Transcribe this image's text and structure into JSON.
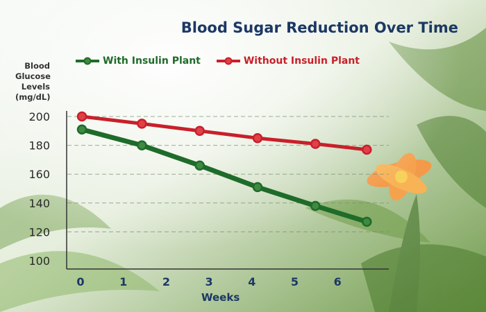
{
  "chart_data": {
    "type": "line",
    "title": "Blood Sugar Reduction Over Time",
    "xlabel": "Weeks",
    "ylabel": "Blood Glucose Levels (mg/dL)",
    "x_ticks": [
      "0",
      "1",
      "2",
      "3",
      "4",
      "5",
      "6"
    ],
    "y_ticks": [
      "100",
      "120",
      "140",
      "160",
      "180",
      "200"
    ],
    "xlim": [
      0,
      6.7
    ],
    "ylim": [
      100,
      200
    ],
    "grid": "horizontal dashed",
    "legend_position": "top",
    "series": [
      {
        "name": "With Insulin Plant",
        "color": "#1f6b2a",
        "x": [
          0,
          1.4,
          2.75,
          4.1,
          5.45,
          6.65
        ],
        "y": [
          191,
          180,
          166,
          151,
          138,
          127
        ]
      },
      {
        "name": "Without Insulin Plant",
        "color": "#c8202a",
        "x": [
          0,
          1.4,
          2.75,
          4.1,
          5.45,
          6.65
        ],
        "y": [
          200,
          195,
          190,
          185,
          181,
          177
        ]
      }
    ]
  }
}
